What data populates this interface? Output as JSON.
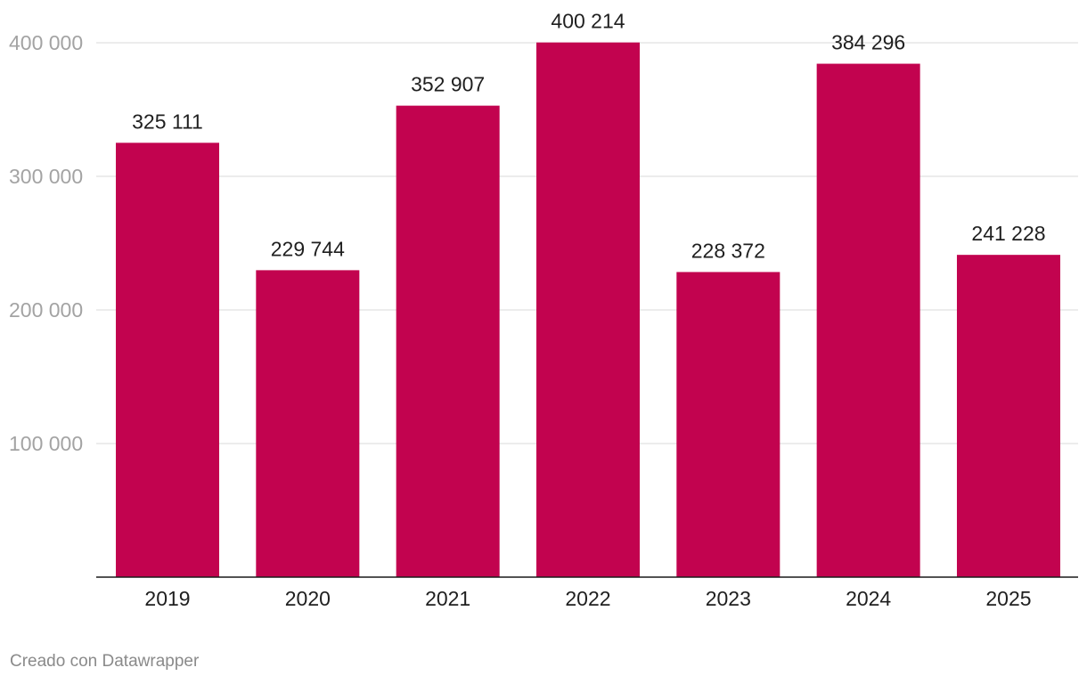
{
  "chart_data": {
    "type": "bar",
    "title": "",
    "xlabel": "",
    "ylabel": "",
    "categories": [
      "2019",
      "2020",
      "2021",
      "2022",
      "2023",
      "2024",
      "2025"
    ],
    "values": [
      325111,
      229744,
      352907,
      400214,
      228372,
      384296,
      241228
    ],
    "value_labels": [
      "325 111",
      "229 744",
      "352 907",
      "400 214",
      "228 372",
      "384 296",
      "241 228"
    ],
    "y_ticks": [
      100000,
      200000,
      300000,
      400000
    ],
    "y_tick_labels": [
      "100 000",
      "200 000",
      "300 000",
      "400 000"
    ],
    "ylim": [
      0,
      400000
    ],
    "grid": true,
    "legend": "none",
    "bar_color": "#c2034f"
  },
  "footer": {
    "credit": "Creado con Datawrapper"
  }
}
